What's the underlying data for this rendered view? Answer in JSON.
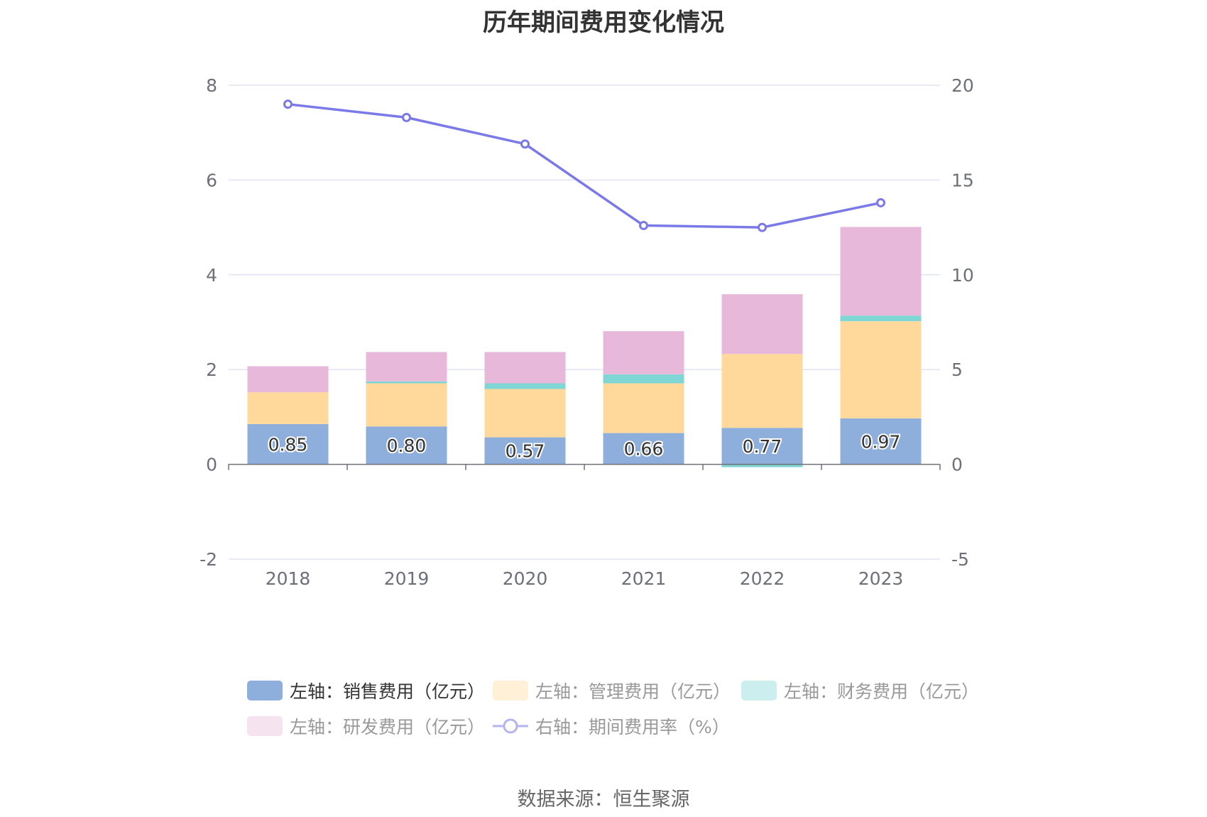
{
  "chart_data": {
    "type": "bar",
    "title": "历年期间费用变化情况",
    "categories": [
      "2018",
      "2019",
      "2020",
      "2021",
      "2022",
      "2023"
    ],
    "stacked": true,
    "left_axis": {
      "ticks": [
        "-2",
        "0",
        "2",
        "4",
        "6",
        "8"
      ],
      "ylim": [
        -2,
        8
      ]
    },
    "right_axis": {
      "ticks": [
        "-5",
        "0",
        "5",
        "10",
        "15",
        "20"
      ],
      "ylim": [
        -5,
        20
      ]
    },
    "series": [
      {
        "name": "左轴：销售费用（亿元）",
        "type": "bar",
        "axis": "left",
        "color": "#8eaedb",
        "values": [
          0.85,
          0.8,
          0.57,
          0.66,
          0.77,
          0.97
        ],
        "labels": [
          "0.85",
          "0.80",
          "0.57",
          "0.66",
          "0.77",
          "0.97"
        ]
      },
      {
        "name": "左轴：管理费用（亿元）",
        "type": "bar",
        "axis": "left",
        "color": "#ffd99b",
        "values": [
          0.67,
          0.91,
          1.02,
          1.05,
          1.56,
          2.05
        ]
      },
      {
        "name": "左轴：财务费用（亿元）",
        "type": "bar",
        "axis": "left",
        "color": "#80d5d5",
        "values": [
          0.0,
          0.04,
          0.12,
          0.19,
          -0.06,
          0.12
        ]
      },
      {
        "name": "左轴：研发费用（亿元）",
        "type": "bar",
        "axis": "left",
        "color": "#e7b8d9",
        "values": [
          0.55,
          0.62,
          0.66,
          0.91,
          1.26,
          1.87
        ]
      },
      {
        "name": "右轴：期间费用率（%）",
        "type": "line",
        "axis": "right",
        "color": "#7b79e8",
        "values": [
          19.0,
          18.3,
          16.9,
          12.6,
          12.5,
          13.8
        ]
      }
    ],
    "legend_position": "bottom",
    "grid": true
  },
  "source": "数据来源：恒生聚源"
}
